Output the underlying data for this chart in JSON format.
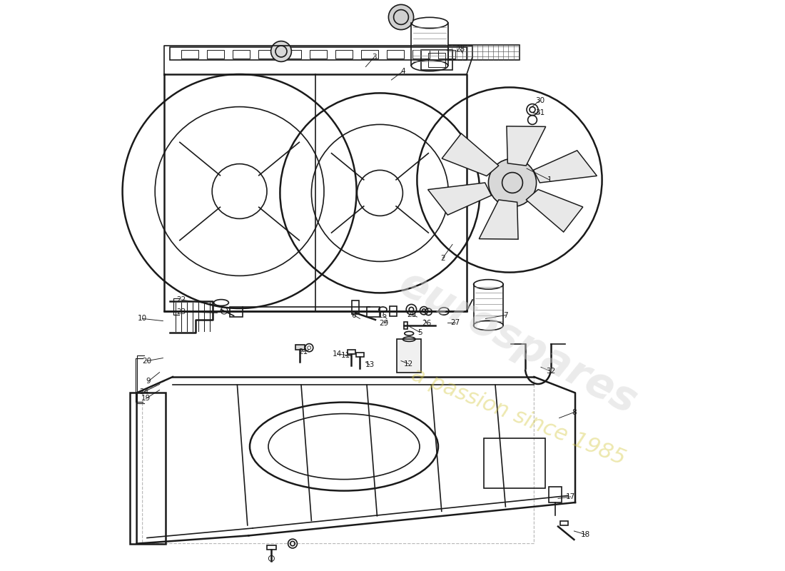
{
  "bg_color": "#ffffff",
  "line_color": "#1a1a1a",
  "watermark_text1": "eurospares",
  "watermark_text2": "a passion since 1985",
  "label_data": [
    [
      1,
      0.775,
      0.685,
      0.735,
      0.705
    ],
    [
      2,
      0.588,
      0.548,
      0.605,
      0.572
    ],
    [
      3,
      0.468,
      0.9,
      0.453,
      0.883
    ],
    [
      4,
      0.518,
      0.875,
      0.498,
      0.86
    ],
    [
      5,
      0.548,
      0.418,
      0.53,
      0.428
    ],
    [
      6,
      0.432,
      0.448,
      0.443,
      0.442
    ],
    [
      7,
      0.698,
      0.448,
      0.663,
      0.442
    ],
    [
      8,
      0.818,
      0.278,
      0.792,
      0.268
    ],
    [
      9,
      0.072,
      0.332,
      0.092,
      0.348
    ],
    [
      10,
      0.062,
      0.442,
      0.098,
      0.438
    ],
    [
      11,
      0.418,
      0.377,
      0.432,
      0.38
    ],
    [
      12,
      0.528,
      0.363,
      0.515,
      0.368
    ],
    [
      13,
      0.46,
      0.361,
      0.453,
      0.366
    ],
    [
      14,
      0.403,
      0.38,
      0.428,
      0.377
    ],
    [
      15,
      0.483,
      0.448,
      0.49,
      0.442
    ],
    [
      17,
      0.812,
      0.13,
      0.79,
      0.127
    ],
    [
      18,
      0.838,
      0.064,
      0.818,
      0.07
    ],
    [
      19,
      0.068,
      0.302,
      0.092,
      0.317
    ],
    [
      20,
      0.07,
      0.368,
      0.098,
      0.373
    ],
    [
      21,
      0.343,
      0.384,
      0.353,
      0.387
    ],
    [
      22,
      0.13,
      0.475,
      0.186,
      0.467
    ],
    [
      23,
      0.13,
      0.454,
      0.193,
      0.452
    ],
    [
      24,
      0.065,
      0.314,
      0.092,
      0.327
    ],
    [
      25,
      0.533,
      0.449,
      0.543,
      0.445
    ],
    [
      26,
      0.56,
      0.434,
      0.556,
      0.44
    ],
    [
      27,
      0.61,
      0.435,
      0.596,
      0.435
    ],
    [
      28,
      0.618,
      0.914,
      0.623,
      0.907
    ],
    [
      29,
      0.485,
      0.434,
      0.491,
      0.439
    ],
    [
      30,
      0.758,
      0.824,
      0.743,
      0.812
    ],
    [
      31,
      0.758,
      0.803,
      0.746,
      0.803
    ],
    [
      32,
      0.777,
      0.35,
      0.76,
      0.357
    ]
  ]
}
